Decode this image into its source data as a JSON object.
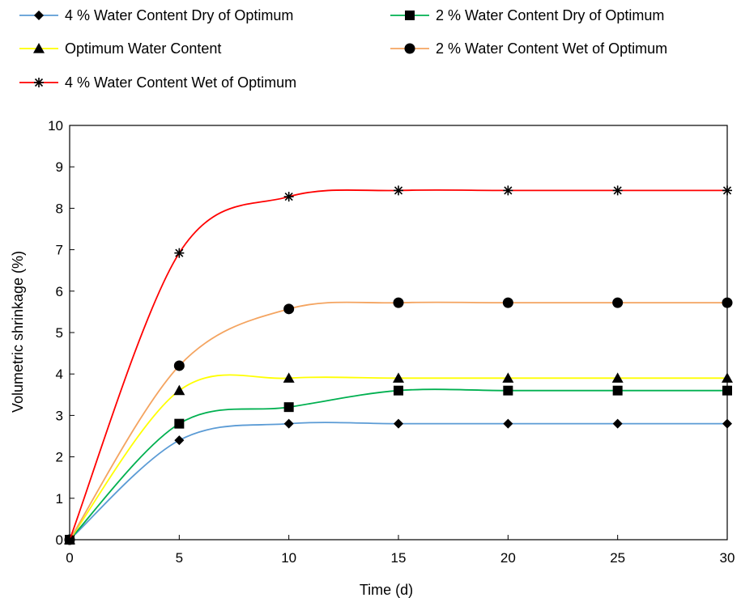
{
  "chart_data": {
    "type": "line",
    "title": "",
    "xlabel": "Time (d)",
    "ylabel": "Volumetric shrinkage (%)",
    "xlim": [
      0,
      30
    ],
    "ylim": [
      0,
      10
    ],
    "xticks": [
      0,
      5,
      10,
      15,
      20,
      25,
      30
    ],
    "yticks": [
      0,
      1,
      2,
      3,
      4,
      5,
      6,
      7,
      8,
      9,
      10
    ],
    "grid": false,
    "legend": "top",
    "x": [
      0,
      5,
      10,
      15,
      20,
      25,
      30
    ],
    "series": [
      {
        "name": "4 % Water Content Dry of Optimum",
        "values": [
          0,
          2.4,
          2.8,
          2.8,
          2.8,
          2.8,
          2.8
        ],
        "color": "#5b9bd5",
        "marker": "diamond"
      },
      {
        "name": "2 % Water Content Dry of Optimum",
        "values": [
          0,
          2.8,
          3.2,
          3.6,
          3.6,
          3.6,
          3.6
        ],
        "color": "#00b050",
        "marker": "square"
      },
      {
        "name": "Optimum Water Content",
        "values": [
          0,
          3.6,
          3.9,
          3.9,
          3.9,
          3.9,
          3.9
        ],
        "color": "#ffff00",
        "marker": "triangle"
      },
      {
        "name": "2 % Water Content Wet of Optimum",
        "values": [
          0,
          4.2,
          5.57,
          5.72,
          5.72,
          5.72,
          5.72
        ],
        "color": "#f4a460",
        "marker": "circle"
      },
      {
        "name": "4 % Water Content Wet of Optimum",
        "values": [
          0,
          6.92,
          8.28,
          8.43,
          8.43,
          8.43,
          8.43
        ],
        "color": "#ff0000",
        "marker": "star"
      }
    ]
  }
}
